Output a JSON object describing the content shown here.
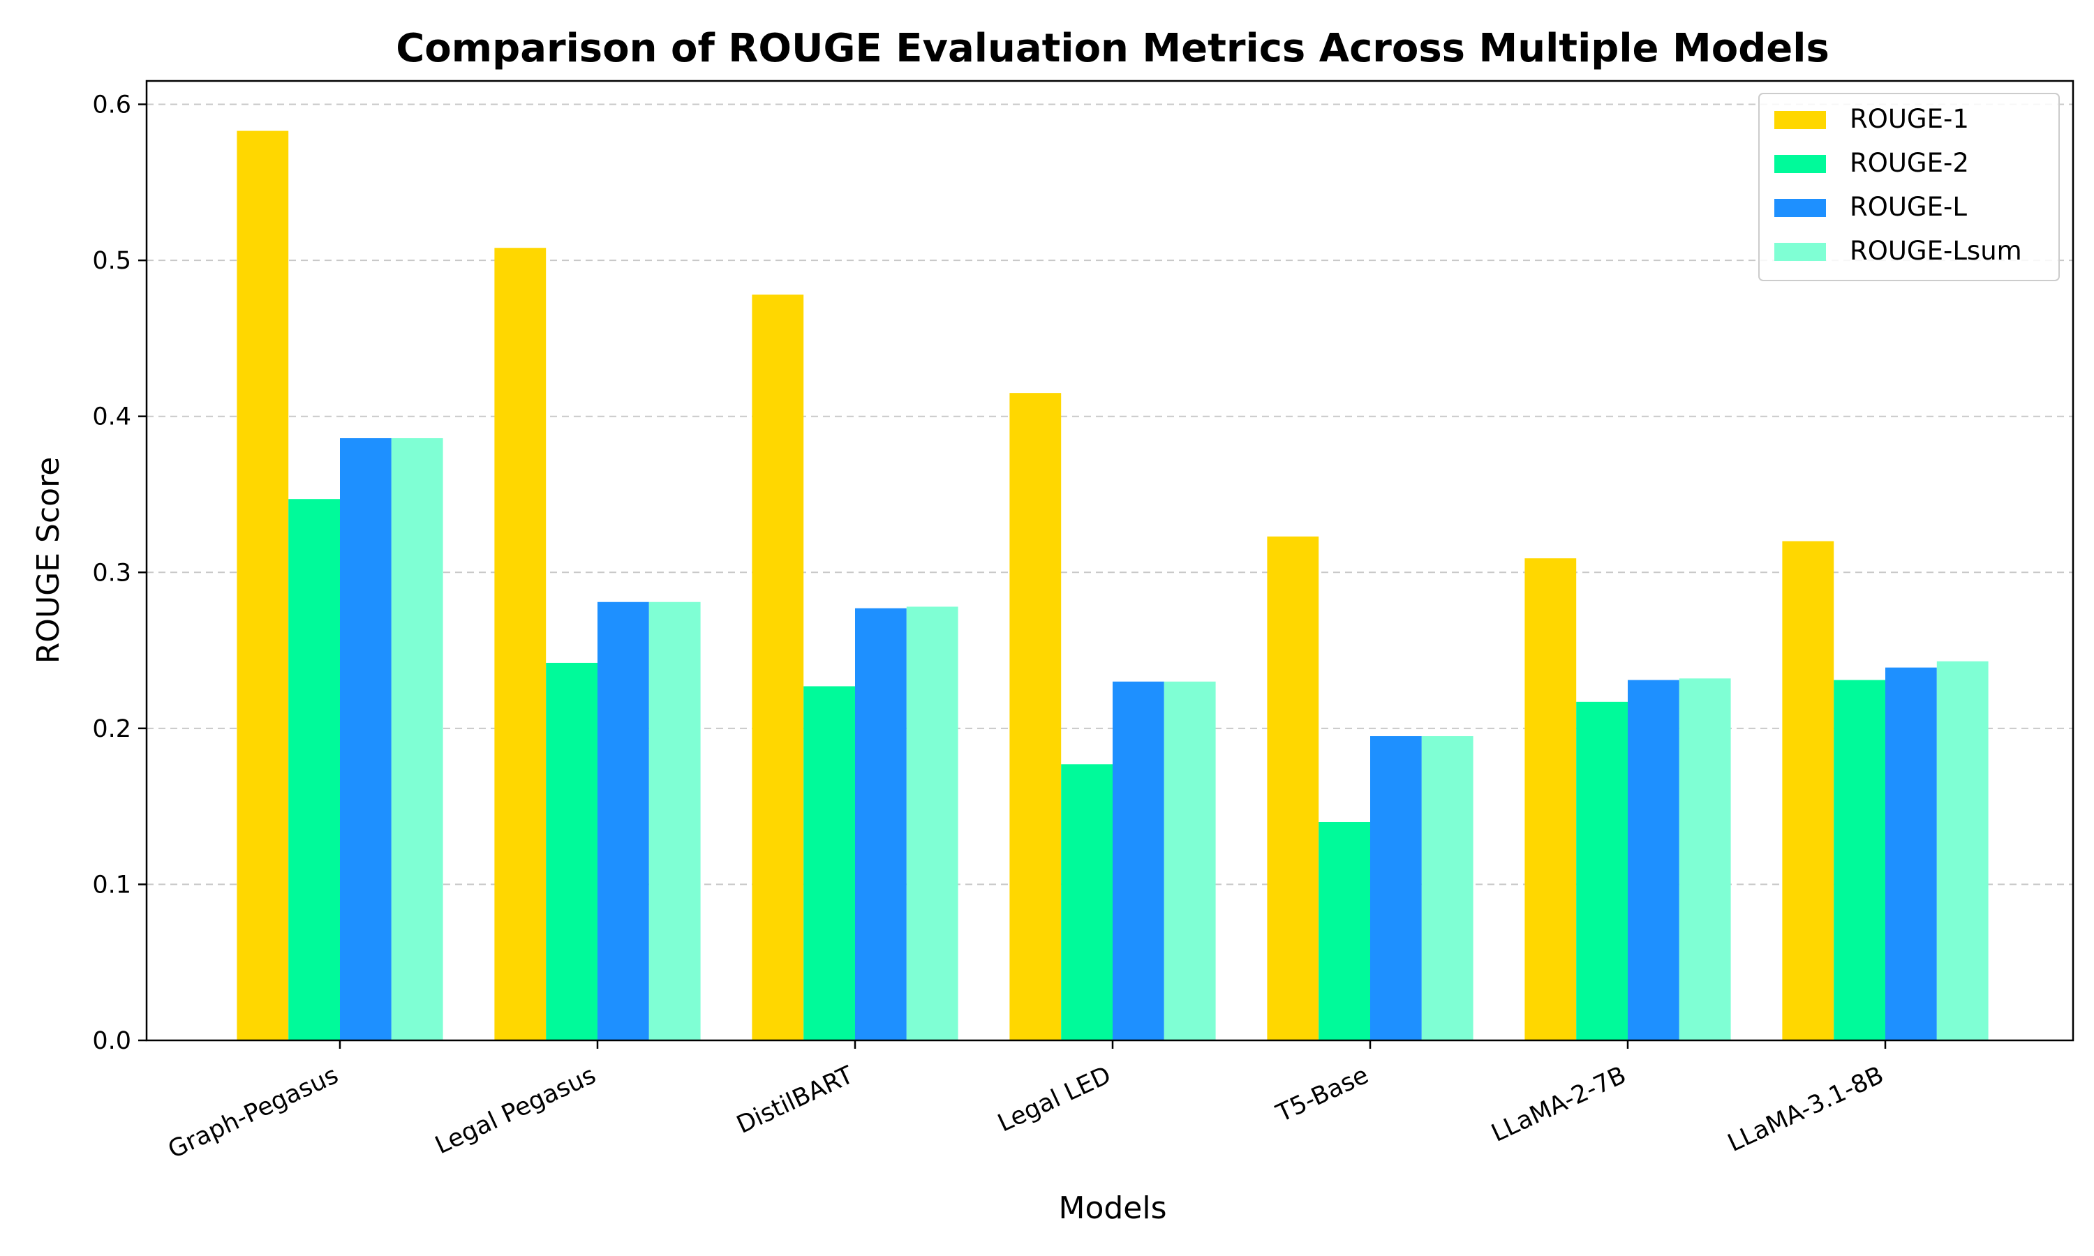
{
  "chart_data": {
    "type": "bar",
    "title": "Comparison of ROUGE Evaluation Metrics Across Multiple Models",
    "xlabel": "Models",
    "ylabel": "ROUGE Score",
    "categories": [
      "Graph-Pegasus",
      "Legal Pegasus",
      "DistilBART",
      "Legal LED",
      "T5-Base",
      "LLaMA-2-7B",
      "LLaMA-3.1-8B"
    ],
    "series": [
      {
        "name": "ROUGE-1",
        "color": "#FFD700",
        "values": [
          0.583,
          0.508,
          0.478,
          0.415,
          0.323,
          0.309,
          0.32
        ]
      },
      {
        "name": "ROUGE-2",
        "color": "#00FA9A",
        "values": [
          0.347,
          0.242,
          0.227,
          0.177,
          0.14,
          0.217,
          0.231
        ]
      },
      {
        "name": "ROUGE-L",
        "color": "#1E90FF",
        "values": [
          0.386,
          0.281,
          0.277,
          0.23,
          0.195,
          0.231,
          0.239
        ]
      },
      {
        "name": "ROUGE-Lsum",
        "color": "#7FFFD4",
        "values": [
          0.386,
          0.281,
          0.278,
          0.23,
          0.195,
          0.232,
          0.243
        ]
      }
    ],
    "ylim": [
      0,
      0.615
    ],
    "yticks": [
      "0.0",
      "0.1",
      "0.2",
      "0.3",
      "0.4",
      "0.5",
      "0.6"
    ],
    "grid": "y-dashed",
    "legend": "top-right"
  }
}
